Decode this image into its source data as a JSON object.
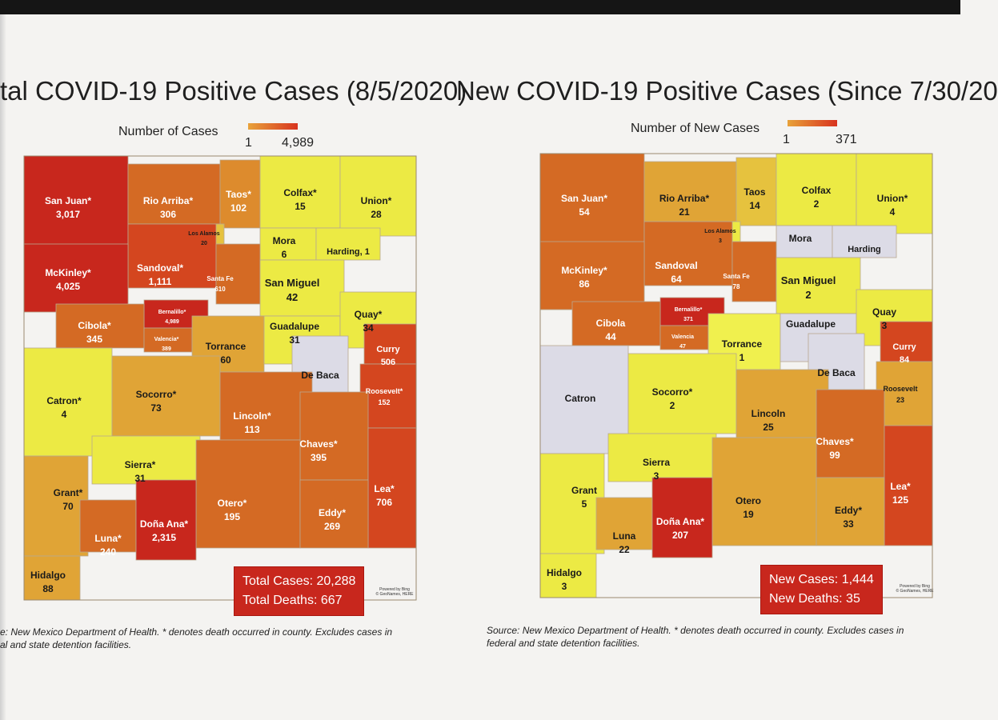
{
  "colors": {
    "deep_red": "#c8271d",
    "red_orange": "#d4461f",
    "dark_orange": "#d46a24",
    "orange": "#dd8b2d",
    "amber": "#e0a436",
    "gold": "#e6c23e",
    "yellow": "#ecea44",
    "bright_yellow": "#f0f04e",
    "no_cases": "#dcdbe6"
  },
  "left": {
    "title": "tal COVID-19 Positive Cases (8/5/2020)",
    "legend_label": "Number of Cases",
    "legend_min": "1",
    "legend_max": "4,989",
    "counties": [
      {
        "name": "San Juan*",
        "value": "3,017"
      },
      {
        "name": "Rio Arriba*",
        "value": "306"
      },
      {
        "name": "Taos*",
        "value": "102"
      },
      {
        "name": "Colfax*",
        "value": "15"
      },
      {
        "name": "Union*",
        "value": "28"
      },
      {
        "name": "Los Alamos",
        "value": "20"
      },
      {
        "name": "Mora",
        "value": "6"
      },
      {
        "name": "Harding, 1",
        "value": ""
      },
      {
        "name": "Sandoval*",
        "value": "1,111"
      },
      {
        "name": "McKinley*",
        "value": "4,025"
      },
      {
        "name": "Santa Fe",
        "value": "610"
      },
      {
        "name": "San Miguel",
        "value": "42"
      },
      {
        "name": "Bernalillo*",
        "value": "4,989"
      },
      {
        "name": "Cibola*",
        "value": "345"
      },
      {
        "name": "Valencia*",
        "value": "389"
      },
      {
        "name": "Torrance",
        "value": "60"
      },
      {
        "name": "Guadalupe",
        "value": "31"
      },
      {
        "name": "Quay*",
        "value": "34"
      },
      {
        "name": "Curry",
        "value": "506"
      },
      {
        "name": "De Baca",
        "value": ""
      },
      {
        "name": "Roosevelt*",
        "value": "152"
      },
      {
        "name": "Catron*",
        "value": "4"
      },
      {
        "name": "Socorro*",
        "value": "73"
      },
      {
        "name": "Lincoln*",
        "value": "113"
      },
      {
        "name": "Chaves*",
        "value": "395"
      },
      {
        "name": "Sierra*",
        "value": "31"
      },
      {
        "name": "Grant*",
        "value": "70"
      },
      {
        "name": "Otero*",
        "value": "195"
      },
      {
        "name": "Lea*",
        "value": "706"
      },
      {
        "name": "Eddy*",
        "value": "269"
      },
      {
        "name": "Luna*",
        "value": "240"
      },
      {
        "name": "Doña Ana*",
        "value": "2,315"
      },
      {
        "name": "Hidalgo",
        "value": "88"
      }
    ],
    "totals_line1": "Total Cases: 20,288",
    "totals_line2": "Total Deaths:   667",
    "bing_line1": "Powered by Bing",
    "bing_line2": "© GeoNames, HERE",
    "source_line1": "e: New Mexico Department of Health. * denotes death occurred in county. Excludes cases in",
    "source_line2": "al and state detention facilities."
  },
  "right": {
    "title": "New COVID-19 Positive Cases (Since 7/30/20",
    "legend_label": "Number of New Cases",
    "legend_min": "1",
    "legend_max": "371",
    "counties": [
      {
        "name": "San Juan*",
        "value": "54"
      },
      {
        "name": "Rio Arriba*",
        "value": "21"
      },
      {
        "name": "Taos",
        "value": "14"
      },
      {
        "name": "Colfax",
        "value": "2"
      },
      {
        "name": "Union*",
        "value": "4"
      },
      {
        "name": "Los Alamos",
        "value": "3"
      },
      {
        "name": "Mora",
        "value": ""
      },
      {
        "name": "Harding",
        "value": ""
      },
      {
        "name": "Sandoval",
        "value": "64"
      },
      {
        "name": "McKinley*",
        "value": "86"
      },
      {
        "name": "Santa Fe",
        "value": "78"
      },
      {
        "name": "San Miguel",
        "value": "2"
      },
      {
        "name": "Bernalillo*",
        "value": "371"
      },
      {
        "name": "Cibola",
        "value": "44"
      },
      {
        "name": "Valencia",
        "value": "47"
      },
      {
        "name": "Torrance",
        "value": "1"
      },
      {
        "name": "Guadalupe",
        "value": ""
      },
      {
        "name": "Quay",
        "value": "3"
      },
      {
        "name": "Curry",
        "value": "84"
      },
      {
        "name": "De Baca",
        "value": ""
      },
      {
        "name": "Roosevelt",
        "value": "23"
      },
      {
        "name": "Catron",
        "value": ""
      },
      {
        "name": "Socorro*",
        "value": "2"
      },
      {
        "name": "Lincoln",
        "value": "25"
      },
      {
        "name": "Chaves*",
        "value": "99"
      },
      {
        "name": "Sierra",
        "value": "3"
      },
      {
        "name": "Grant",
        "value": "5"
      },
      {
        "name": "Otero",
        "value": "19"
      },
      {
        "name": "Lea*",
        "value": "125"
      },
      {
        "name": "Eddy*",
        "value": "33"
      },
      {
        "name": "Luna",
        "value": "22"
      },
      {
        "name": "Doña Ana*",
        "value": "207"
      },
      {
        "name": "Hidalgo",
        "value": "3"
      }
    ],
    "totals_line1": "New Cases: 1,444",
    "totals_line2": "New Deaths:   35",
    "bing_line1": "Powered by Bing",
    "bing_line2": "© GeoNames, HERE",
    "source_line1": "Source: New Mexico Department of Health. * denotes death occurred in county. Excludes cases in",
    "source_line2": "federal and state detention facilities."
  }
}
